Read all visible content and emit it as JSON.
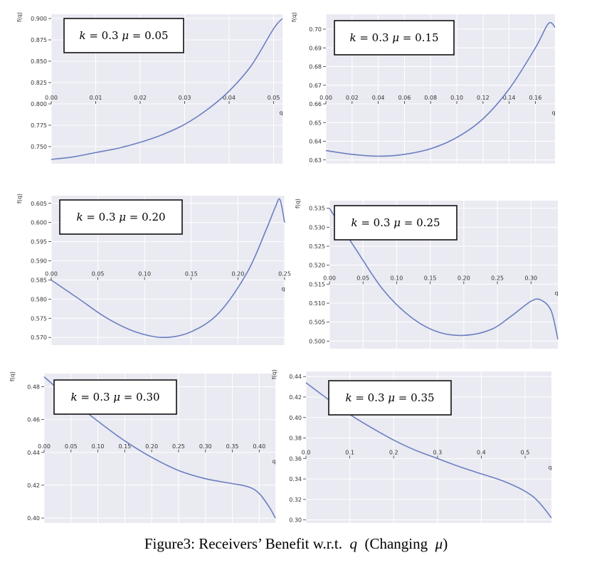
{
  "caption": {
    "prefix": "Figure3: Receivers’ Benefit w.r.t.",
    "var_q": "q",
    "middle": "(Changing",
    "var_mu": "μ",
    "suffix": ")"
  },
  "chart_data": [
    {
      "type": "line",
      "annotation": {
        "k": "0.3",
        "mu": "0.05"
      },
      "xlabel": "q",
      "ylabel": "f(q)",
      "xlim": [
        0,
        0.052
      ],
      "ylim": [
        0.73,
        0.905
      ],
      "x_axis_at_y": 0.8,
      "xticks": [
        0,
        0.01,
        0.02,
        0.03,
        0.04,
        0.05
      ],
      "xtick_labels": [
        "0.00",
        "0.01",
        "0.02",
        "0.03",
        "0.04",
        "0.05"
      ],
      "yticks": [
        0.75,
        0.775,
        0.8,
        0.825,
        0.85,
        0.875,
        0.9
      ],
      "ytick_labels": [
        "0.750",
        "0.775",
        "0.800",
        "0.825",
        "0.850",
        "0.875",
        "0.900"
      ],
      "series": [
        {
          "x": [
            0,
            0.005,
            0.01,
            0.015,
            0.02,
            0.025,
            0.03,
            0.035,
            0.04,
            0.045,
            0.05,
            0.052
          ],
          "y": [
            0.735,
            0.738,
            0.743,
            0.748,
            0.755,
            0.764,
            0.776,
            0.793,
            0.815,
            0.845,
            0.888,
            0.9
          ]
        }
      ]
    },
    {
      "type": "line",
      "annotation": {
        "k": "0.3",
        "mu": "0.15"
      },
      "xlabel": "q",
      "ylabel": "f(q)",
      "xlim": [
        0,
        0.175
      ],
      "ylim": [
        0.628,
        0.708
      ],
      "x_axis_at_y": 0.66,
      "xticks": [
        0,
        0.02,
        0.04,
        0.06,
        0.08,
        0.1,
        0.12,
        0.14,
        0.16
      ],
      "xtick_labels": [
        "0.00",
        "0.02",
        "0.04",
        "0.06",
        "0.08",
        "0.10",
        "0.12",
        "0.14",
        "0.16"
      ],
      "yticks": [
        0.63,
        0.64,
        0.65,
        0.66,
        0.67,
        0.68,
        0.69,
        0.7
      ],
      "ytick_labels": [
        "0.63",
        "0.64",
        "0.65",
        "0.66",
        "0.67",
        "0.68",
        "0.69",
        "0.70"
      ],
      "series": [
        {
          "x": [
            0,
            0.02,
            0.04,
            0.06,
            0.08,
            0.1,
            0.12,
            0.14,
            0.16,
            0.17,
            0.175
          ],
          "y": [
            0.635,
            0.633,
            0.632,
            0.633,
            0.636,
            0.642,
            0.652,
            0.668,
            0.69,
            0.703,
            0.701
          ]
        }
      ]
    },
    {
      "type": "line",
      "annotation": {
        "k": "0.3",
        "mu": "0.20"
      },
      "xlabel": "q",
      "ylabel": "f(q)",
      "xlim": [
        0,
        0.25
      ],
      "ylim": [
        0.568,
        0.607
      ],
      "x_axis_at_y": 0.585,
      "xticks": [
        0,
        0.05,
        0.1,
        0.15,
        0.2,
        0.25
      ],
      "xtick_labels": [
        "0.00",
        "0.05",
        "0.10",
        "0.15",
        "0.20",
        "0.25"
      ],
      "yticks": [
        0.57,
        0.575,
        0.58,
        0.585,
        0.59,
        0.595,
        0.6,
        0.605
      ],
      "ytick_labels": [
        "0.570",
        "0.575",
        "0.580",
        "0.585",
        "0.590",
        "0.595",
        "0.600",
        "0.605"
      ],
      "series": [
        {
          "x": [
            0,
            0.03,
            0.06,
            0.09,
            0.12,
            0.15,
            0.18,
            0.21,
            0.23,
            0.24,
            0.245,
            0.25
          ],
          "y": [
            0.585,
            0.58,
            0.575,
            0.5715,
            0.57,
            0.5715,
            0.5765,
            0.587,
            0.598,
            0.604,
            0.606,
            0.6
          ]
        }
      ]
    },
    {
      "type": "line",
      "annotation": {
        "k": "0.3",
        "mu": "0.25"
      },
      "xlabel": "q",
      "ylabel": "f(q)",
      "xlim": [
        0,
        0.34
      ],
      "ylim": [
        0.498,
        0.537
      ],
      "x_axis_at_y": 0.515,
      "xticks": [
        0,
        0.05,
        0.1,
        0.15,
        0.2,
        0.25,
        0.3
      ],
      "xtick_labels": [
        "0.00",
        "0.05",
        "0.10",
        "0.15",
        "0.20",
        "0.25",
        "0.30"
      ],
      "yticks": [
        0.5,
        0.505,
        0.51,
        0.515,
        0.52,
        0.525,
        0.53,
        0.535
      ],
      "ytick_labels": [
        "0.500",
        "0.505",
        "0.510",
        "0.515",
        "0.520",
        "0.525",
        "0.530",
        "0.535"
      ],
      "series": [
        {
          "x": [
            0,
            0.04,
            0.08,
            0.12,
            0.16,
            0.2,
            0.24,
            0.27,
            0.3,
            0.315,
            0.33,
            0.34
          ],
          "y": [
            0.535,
            0.524,
            0.5135,
            0.5065,
            0.5025,
            0.5015,
            0.503,
            0.5065,
            0.5105,
            0.5108,
            0.508,
            0.5005
          ]
        }
      ]
    },
    {
      "type": "line",
      "annotation": {
        "k": "0.3",
        "mu": "0.30"
      },
      "xlabel": "q",
      "ylabel": "f(q)",
      "xlim": [
        0,
        0.43
      ],
      "ylim": [
        0.397,
        0.488
      ],
      "x_axis_at_y": 0.44,
      "xticks": [
        0,
        0.05,
        0.1,
        0.15,
        0.2,
        0.25,
        0.3,
        0.35,
        0.4
      ],
      "xtick_labels": [
        "0.00",
        "0.05",
        "0.10",
        "0.15",
        "0.20",
        "0.25",
        "0.30",
        "0.35",
        "0.40"
      ],
      "yticks": [
        0.4,
        0.42,
        0.44,
        0.46,
        0.48
      ],
      "ytick_labels": [
        "0.40",
        "0.42",
        "0.44",
        "0.46",
        "0.48"
      ],
      "series": [
        {
          "x": [
            0,
            0.05,
            0.1,
            0.15,
            0.2,
            0.25,
            0.3,
            0.35,
            0.38,
            0.4,
            0.42,
            0.43
          ],
          "y": [
            0.486,
            0.472,
            0.459,
            0.447,
            0.437,
            0.429,
            0.424,
            0.421,
            0.419,
            0.415,
            0.406,
            0.4
          ]
        }
      ]
    },
    {
      "type": "line",
      "annotation": {
        "k": "0.3",
        "mu": "0.35"
      },
      "xlabel": "q",
      "ylabel": "f(q)",
      "xlim": [
        0,
        0.56
      ],
      "ylim": [
        0.297,
        0.445
      ],
      "x_axis_at_y": 0.36,
      "xticks": [
        0,
        0.1,
        0.2,
        0.3,
        0.4,
        0.5
      ],
      "xtick_labels": [
        "0.0",
        "0.1",
        "0.2",
        "0.3",
        "0.4",
        "0.5"
      ],
      "yticks": [
        0.3,
        0.32,
        0.34,
        0.36,
        0.38,
        0.4,
        0.42,
        0.44
      ],
      "ytick_labels": [
        "0.30",
        "0.32",
        "0.34",
        "0.36",
        "0.38",
        "0.40",
        "0.42",
        "0.44"
      ],
      "series": [
        {
          "x": [
            0,
            0.05,
            0.1,
            0.15,
            0.2,
            0.25,
            0.3,
            0.35,
            0.4,
            0.45,
            0.5,
            0.53,
            0.56
          ],
          "y": [
            0.434,
            0.418,
            0.403,
            0.39,
            0.378,
            0.368,
            0.36,
            0.352,
            0.345,
            0.338,
            0.328,
            0.318,
            0.302
          ]
        }
      ]
    }
  ]
}
